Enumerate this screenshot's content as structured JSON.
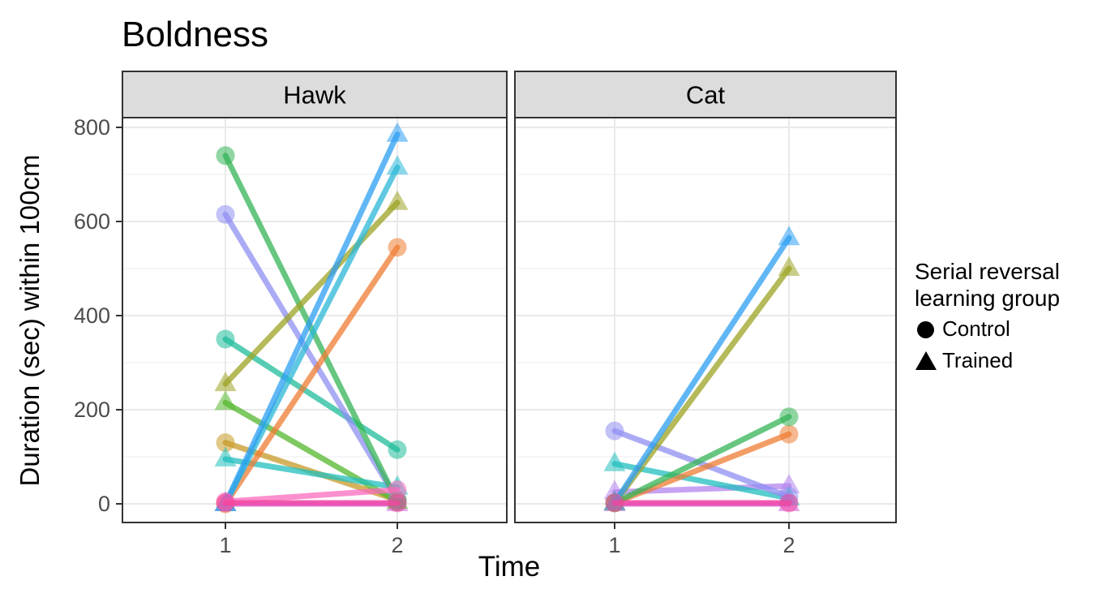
{
  "title": "Boldness",
  "axes": {
    "x_title": "Time",
    "y_title": "Duration (sec) within 100cm",
    "x_tick_labels": [
      "1",
      "2"
    ],
    "y_tick_labels": [
      "800",
      "600",
      "400",
      "200",
      "0"
    ],
    "y_major_values": [
      0,
      200,
      400,
      600,
      800
    ],
    "y_minor_values": [
      100,
      300,
      500,
      700
    ],
    "ylim": [
      0,
      800
    ]
  },
  "facet_strips": [
    "Hawk",
    "Cat"
  ],
  "legend": {
    "title_line1": "Serial reversal",
    "title_line2": " learning group",
    "items": [
      {
        "label": "Control",
        "shape": "circle"
      },
      {
        "label": "Trained",
        "shape": "triangle"
      }
    ]
  },
  "colors": {
    "strip_fill": "#DCDCDC",
    "panel_border": "#333333",
    "grid_major": "#E9E9E9",
    "grid_minor": "#F4F4F4",
    "tick_label": "#4D4D4D",
    "axis_tick": "#333333"
  },
  "chart_data": {
    "type": "line",
    "x": [
      1,
      2
    ],
    "xlabel": "Time",
    "ylabel": "Duration (sec) within 100cm",
    "ylim": [
      0,
      800
    ],
    "grid": true,
    "legend_position": "right",
    "shape_legend": {
      "circle": "Control",
      "triangle": "Trained"
    },
    "facets": [
      {
        "name": "Hawk",
        "series": [
          {
            "id": "orchid",
            "group": "Trained",
            "shape": "triangle",
            "color": "#CE5FE0",
            "values": [
              0,
              0
            ]
          },
          {
            "id": "mustard",
            "group": "Control",
            "shape": "circle",
            "color": "#C79A27",
            "values": [
              130,
              8
            ]
          },
          {
            "id": "green2",
            "group": "Trained",
            "shape": "triangle",
            "color": "#55B82E",
            "values": [
              215,
              5
            ]
          },
          {
            "id": "teal",
            "group": "Trained",
            "shape": "triangle",
            "color": "#21BFBE",
            "values": [
              95,
              35
            ]
          },
          {
            "id": "seagreen",
            "group": "Control",
            "shape": "circle",
            "color": "#1FBD9A",
            "values": [
              350,
              115
            ]
          },
          {
            "id": "lavender",
            "group": "Control",
            "shape": "circle",
            "color": "#8F8FF2",
            "values": [
              615,
              8
            ]
          },
          {
            "id": "green",
            "group": "Control",
            "shape": "circle",
            "color": "#35B558",
            "values": [
              740,
              5
            ]
          },
          {
            "id": "salmon",
            "group": "Control",
            "shape": "circle",
            "color": "#EF7D33",
            "values": [
              0,
              545
            ]
          },
          {
            "id": "olive",
            "group": "Trained",
            "shape": "triangle",
            "color": "#9DA424",
            "values": [
              255,
              640
            ]
          },
          {
            "id": "cyan",
            "group": "Trained",
            "shape": "triangle",
            "color": "#2CB8D8",
            "values": [
              0,
              715
            ]
          },
          {
            "id": "skyblue",
            "group": "Trained",
            "shape": "triangle",
            "color": "#2D9FF2",
            "values": [
              0,
              785
            ]
          },
          {
            "id": "pink-rise",
            "group": "Control",
            "shape": "circle",
            "color": "#FB6BBE",
            "values": [
              5,
              30
            ]
          },
          {
            "id": "pink-flat",
            "group": "Control",
            "shape": "circle",
            "color": "#F5439E",
            "values": [
              2,
              2
            ]
          }
        ]
      },
      {
        "name": "Cat",
        "series": [
          {
            "id": "orchid",
            "group": "Trained",
            "shape": "triangle",
            "color": "#CE5FE0",
            "values": [
              0,
              0
            ]
          },
          {
            "id": "violet",
            "group": "Trained",
            "shape": "triangle",
            "color": "#B483F0",
            "values": [
              25,
              38
            ]
          },
          {
            "id": "teal",
            "group": "Trained",
            "shape": "triangle",
            "color": "#21BFBE",
            "values": [
              85,
              12
            ]
          },
          {
            "id": "lavender",
            "group": "Control",
            "shape": "circle",
            "color": "#8F8FF2",
            "values": [
              155,
              15
            ]
          },
          {
            "id": "salmon",
            "group": "Control",
            "shape": "circle",
            "color": "#EF7D33",
            "values": [
              2,
              148
            ]
          },
          {
            "id": "green",
            "group": "Control",
            "shape": "circle",
            "color": "#35B558",
            "values": [
              2,
              185
            ]
          },
          {
            "id": "olive",
            "group": "Trained",
            "shape": "triangle",
            "color": "#9DA424",
            "values": [
              2,
              500
            ]
          },
          {
            "id": "skyblue",
            "group": "Trained",
            "shape": "triangle",
            "color": "#2D9FF2",
            "values": [
              2,
              565
            ]
          },
          {
            "id": "hotpink",
            "group": "Control",
            "shape": "circle",
            "color": "#F5439E",
            "values": [
              2,
              2
            ]
          }
        ]
      }
    ]
  },
  "layout_note": "faceted paired-line plot, time 1 vs time 2 per individual"
}
